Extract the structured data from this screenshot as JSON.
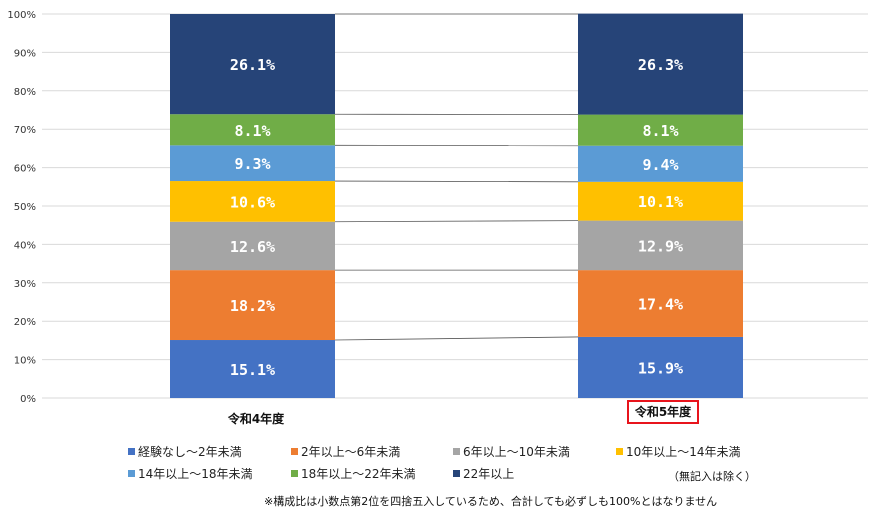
{
  "chart_data": {
    "type": "bar",
    "stacked": true,
    "categories": [
      "令和4年度",
      "令和5年度"
    ],
    "highlighted_category": "令和5年度",
    "yaxis": {
      "min": 0,
      "max": 100,
      "ticks": [
        "0%",
        "10%",
        "20%",
        "30%",
        "40%",
        "50%",
        "60%",
        "70%",
        "80%",
        "90%",
        "100%"
      ]
    },
    "grid": true,
    "series": [
      {
        "name": "経験なし～2年未満",
        "color": "#4472c4",
        "values": [
          15.1,
          15.9
        ],
        "labels": [
          "15.1%",
          "15.9%"
        ]
      },
      {
        "name": "2年以上～6年未満",
        "color": "#ed7d31",
        "values": [
          18.2,
          17.4
        ],
        "labels": [
          "18.2%",
          "17.4%"
        ]
      },
      {
        "name": "6年以上～10年未満",
        "color": "#a5a5a5",
        "values": [
          12.6,
          12.9
        ],
        "labels": [
          "12.6%",
          "12.9%"
        ]
      },
      {
        "name": "10年以上～14年未満",
        "color": "#ffc000",
        "values": [
          10.6,
          10.1
        ],
        "labels": [
          "10.6%",
          "10.1%"
        ]
      },
      {
        "name": "14年以上～18年未満",
        "color": "#5b9bd5",
        "values": [
          9.3,
          9.4
        ],
        "labels": [
          "9.3%",
          "9.4%"
        ]
      },
      {
        "name": "18年以上～22年未満",
        "color": "#70ad47",
        "values": [
          8.1,
          8.1
        ],
        "labels": [
          "8.1%",
          "8.1%"
        ]
      },
      {
        "name": "22年以上",
        "color": "#264478",
        "values": [
          26.1,
          26.3
        ],
        "labels": [
          "26.1%",
          "26.3%"
        ]
      }
    ],
    "legend_position": "bottom",
    "annotations": {
      "excluded_note": "（無記入は除く）",
      "footnote": "※構成比は小数点第2位を四捨五入しているため、合計しても必ずしも100%とはなりません"
    }
  }
}
